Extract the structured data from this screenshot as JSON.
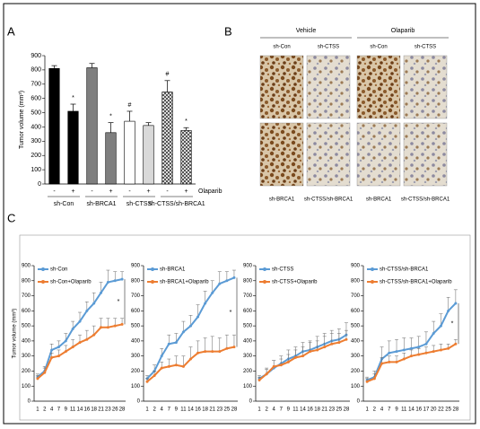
{
  "panel_labels": [
    "A",
    "B",
    "C"
  ],
  "histology": {
    "headers": [
      "Vehicle",
      "Olaparib"
    ],
    "column_labels": [
      "sh-Con",
      "sh-CTSS",
      "sh-Con",
      "sh-CTSS"
    ],
    "bottom_labels": [
      "sh-BRCA1",
      "sh-CTSS/sh-BRCA1",
      "sh-BRCA1",
      "sh-CTSS/sh-BRCA1"
    ]
  },
  "chart_data": [
    {
      "type": "bar",
      "y_label": "Tumor volume (mm³)",
      "categories": [
        "-",
        "+",
        "-",
        "+",
        "-",
        "+",
        "-",
        "+"
      ],
      "groups": [
        "sh-Con",
        "sh-BRCA1",
        "sh-CTSS",
        "sh-CTSS/sh-BRCA1"
      ],
      "treatment_label": "Olaparib",
      "values": [
        810,
        510,
        815,
        360,
        440,
        410,
        645,
        375
      ],
      "errors": [
        20,
        50,
        30,
        70,
        70,
        20,
        80,
        20
      ],
      "annotations": [
        null,
        "*",
        null,
        "*",
        "#",
        null,
        "#",
        "*"
      ],
      "colors": [
        "#000000",
        "#000000",
        "#7f7f7f",
        "#7f7f7f",
        "#ffffff",
        "#d9d9d9",
        "#bfbfbf",
        "#bfbfbf"
      ],
      "hatched": [
        false,
        false,
        false,
        false,
        false,
        false,
        true,
        true
      ],
      "ylim": [
        0,
        900
      ],
      "yticks": [
        0,
        100,
        200,
        300,
        400,
        500,
        600,
        700,
        800,
        900
      ]
    },
    {
      "type": "line",
      "y_label": "Tumor volume (mm³)",
      "categories": [
        "1",
        "2",
        "4",
        "7",
        "9",
        "11",
        "14",
        "16",
        "18",
        "21",
        "23",
        "26",
        "28"
      ],
      "ylim": [
        0,
        900
      ],
      "yticks": [
        0,
        100,
        200,
        300,
        400,
        500,
        600,
        700,
        800,
        900
      ],
      "annotation": "*",
      "series": [
        {
          "name": "sh-Con",
          "color": "#5b9bd5",
          "values": [
            160,
            200,
            340,
            360,
            400,
            480,
            530,
            600,
            650,
            720,
            790,
            800,
            810
          ],
          "errors": [
            20,
            30,
            40,
            40,
            50,
            50,
            60,
            60,
            70,
            70,
            80,
            60,
            50
          ]
        },
        {
          "name": "sh-Con+Olaparib",
          "color": "#ed7d31",
          "values": [
            150,
            190,
            290,
            300,
            330,
            360,
            390,
            410,
            440,
            490,
            490,
            500,
            510
          ],
          "errors": [
            20,
            30,
            30,
            40,
            40,
            50,
            50,
            60,
            60,
            60,
            60,
            50,
            40
          ]
        }
      ]
    },
    {
      "type": "line",
      "categories": [
        "1",
        "2",
        "4",
        "7",
        "9",
        "11",
        "14",
        "16",
        "18",
        "21",
        "23",
        "25",
        "28"
      ],
      "ylim": [
        0,
        900
      ],
      "yticks": [
        0,
        100,
        200,
        300,
        400,
        500,
        600,
        700,
        800,
        900
      ],
      "annotation": "*",
      "series": [
        {
          "name": "sh-BRCA1",
          "color": "#5b9bd5",
          "values": [
            150,
            200,
            300,
            380,
            390,
            460,
            500,
            560,
            650,
            720,
            780,
            800,
            820
          ],
          "errors": [
            20,
            40,
            50,
            60,
            60,
            70,
            70,
            80,
            80,
            80,
            80,
            60,
            50
          ]
        },
        {
          "name": "sh-BRCA1+Olaparib",
          "color": "#ed7d31",
          "values": [
            130,
            170,
            220,
            230,
            240,
            230,
            280,
            320,
            330,
            330,
            330,
            350,
            360
          ],
          "errors": [
            20,
            30,
            40,
            50,
            60,
            70,
            80,
            80,
            90,
            100,
            90,
            90,
            80
          ]
        }
      ]
    },
    {
      "type": "line",
      "categories": [
        "1",
        "2",
        "4",
        "7",
        "9",
        "11",
        "14",
        "16",
        "18",
        "21",
        "23",
        "25",
        "28"
      ],
      "ylim": [
        0,
        900
      ],
      "yticks": [
        0,
        100,
        200,
        300,
        400,
        500,
        600,
        700,
        800,
        900
      ],
      "series": [
        {
          "name": "sh-CTSS",
          "color": "#5b9bd5",
          "values": [
            150,
            180,
            220,
            250,
            280,
            300,
            330,
            340,
            360,
            380,
            400,
            410,
            440
          ],
          "errors": [
            20,
            40,
            50,
            50,
            60,
            60,
            60,
            60,
            70,
            70,
            70,
            70,
            80
          ]
        },
        {
          "name": "sh-CTSS+Olaparib",
          "color": "#ed7d31",
          "values": [
            140,
            180,
            230,
            240,
            260,
            290,
            300,
            330,
            340,
            360,
            380,
            390,
            410
          ],
          "errors": [
            20,
            30,
            40,
            40,
            50,
            50,
            60,
            60,
            60,
            70,
            70,
            60,
            60
          ]
        }
      ]
    },
    {
      "type": "line",
      "categories": [
        "1",
        "2",
        "4",
        "7",
        "9",
        "11",
        "14",
        "16",
        "17",
        "20",
        "22",
        "25",
        "28"
      ],
      "ylim": [
        0,
        900
      ],
      "yticks": [
        0,
        100,
        200,
        300,
        400,
        500,
        600,
        700,
        800,
        900
      ],
      "annotation": "*",
      "series": [
        {
          "name": "sh-CTSS/sh-BRCA1",
          "color": "#5b9bd5",
          "values": [
            140,
            160,
            280,
            320,
            330,
            340,
            350,
            360,
            380,
            450,
            500,
            600,
            650
          ],
          "errors": [
            20,
            40,
            80,
            80,
            80,
            80,
            70,
            70,
            80,
            80,
            80,
            90,
            90
          ]
        },
        {
          "name": "sh-CTSS/sh-BRCA1+Olaparib",
          "color": "#ed7d31",
          "values": [
            130,
            150,
            250,
            260,
            260,
            280,
            300,
            310,
            320,
            330,
            340,
            350,
            380
          ],
          "errors": [
            20,
            30,
            40,
            40,
            40,
            40,
            40,
            40,
            40,
            40,
            40,
            30,
            30
          ]
        }
      ]
    }
  ]
}
